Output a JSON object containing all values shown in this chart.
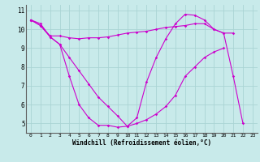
{
  "xlabel": "Windchill (Refroidissement éolien,°C)",
  "background_color": "#c8eaea",
  "grid_color": "#aad4d4",
  "line_color": "#cc00cc",
  "x": [
    0,
    1,
    2,
    3,
    4,
    5,
    6,
    7,
    8,
    9,
    10,
    11,
    12,
    13,
    14,
    15,
    16,
    17,
    18,
    19,
    20,
    21,
    22,
    23
  ],
  "line1": [
    10.5,
    10.3,
    9.6,
    9.2,
    7.5,
    6.0,
    5.3,
    4.9,
    4.9,
    4.8,
    4.85,
    5.3,
    7.2,
    8.5,
    9.5,
    10.3,
    10.8,
    10.75,
    10.5,
    10.0,
    9.8,
    7.5,
    5.0,
    null
  ],
  "line2": [
    10.5,
    10.2,
    9.65,
    9.65,
    9.55,
    9.5,
    9.55,
    9.55,
    9.6,
    9.7,
    9.8,
    9.85,
    9.9,
    10.0,
    10.1,
    10.15,
    10.2,
    10.3,
    10.3,
    10.0,
    9.8,
    9.8,
    null,
    null
  ],
  "line3": [
    10.5,
    10.2,
    9.6,
    9.2,
    8.5,
    7.8,
    7.1,
    6.4,
    5.9,
    5.4,
    4.85,
    5.0,
    5.2,
    5.5,
    5.9,
    6.5,
    7.5,
    8.0,
    8.5,
    8.8,
    9.0,
    null,
    null,
    null
  ],
  "ylim": [
    4.5,
    11.3
  ],
  "xlim": [
    -0.5,
    23.5
  ],
  "yticks": [
    5,
    6,
    7,
    8,
    9,
    10,
    11
  ],
  "xticks": [
    0,
    1,
    2,
    3,
    4,
    5,
    6,
    7,
    8,
    9,
    10,
    11,
    12,
    13,
    14,
    15,
    16,
    17,
    18,
    19,
    20,
    21,
    22,
    23
  ]
}
